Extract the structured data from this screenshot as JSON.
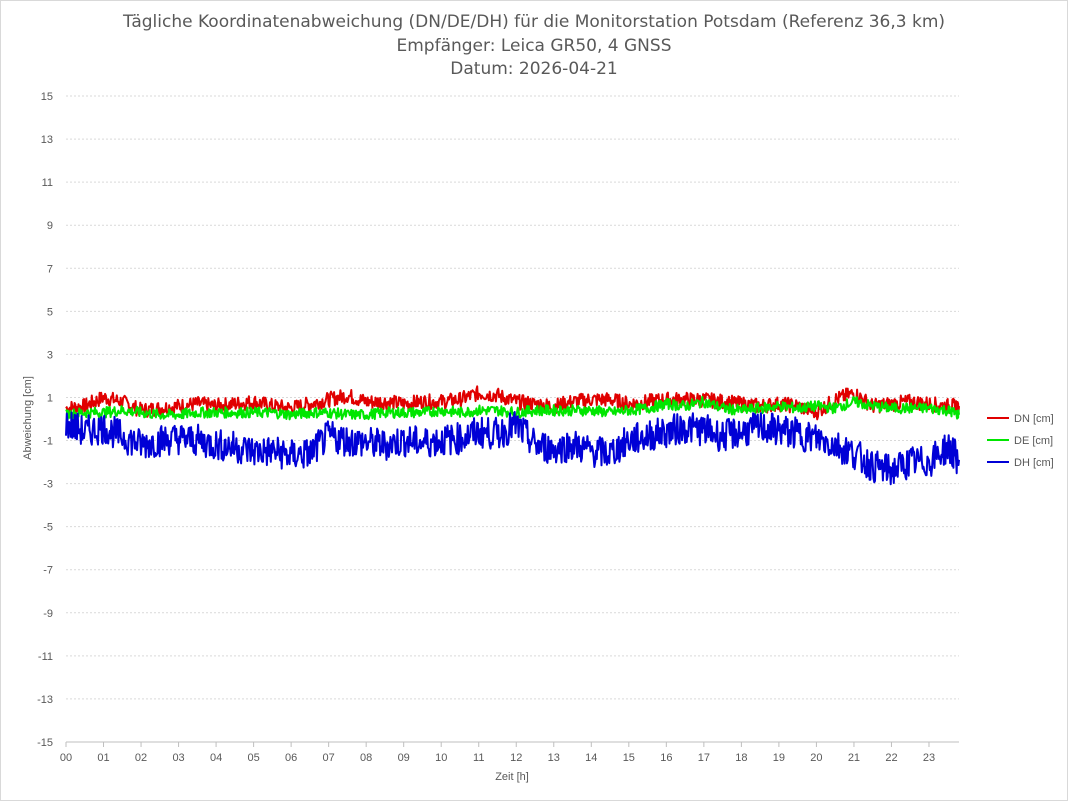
{
  "chart_data": {
    "type": "line",
    "title": "Tägliche Koordinatenabweichung (DN/DE/DH) für die Monitorstation Potsdam (Referenz 36,3 km)",
    "subtitle": [
      "Empfänger: Leica GR50, 4 GNSS",
      "Datum: 2026-04-21"
    ],
    "xlabel": "Zeit [h]",
    "ylabel": "Abweichung [cm]",
    "xlim": [
      0,
      23.8
    ],
    "ylim": [
      -15,
      15
    ],
    "x_ticks": [
      "00",
      "01",
      "02",
      "03",
      "04",
      "05",
      "06",
      "07",
      "08",
      "09",
      "10",
      "11",
      "12",
      "13",
      "14",
      "15",
      "16",
      "17",
      "18",
      "19",
      "20",
      "21",
      "22",
      "23"
    ],
    "y_ticks": [
      15,
      13,
      11,
      9,
      7,
      5,
      3,
      1,
      -1,
      -3,
      -5,
      -7,
      -9,
      -11,
      -13,
      -15
    ],
    "grid": "horizontal-dotted",
    "legend": "right",
    "x": [
      0,
      0.5,
      1,
      1.5,
      2,
      2.5,
      3,
      3.5,
      4,
      4.5,
      5,
      5.5,
      6,
      6.5,
      7,
      7.5,
      8,
      8.5,
      9,
      9.5,
      10,
      10.5,
      11,
      11.5,
      12,
      12.5,
      13,
      13.5,
      14,
      14.5,
      15,
      15.5,
      16,
      16.5,
      17,
      17.5,
      18,
      18.5,
      19,
      19.5,
      20,
      20.5,
      21,
      21.5,
      22,
      22.5,
      23,
      23.5,
      23.8
    ],
    "series": [
      {
        "name": "DN [cm]",
        "color": "#e00000",
        "values": [
          0.5,
          0.6,
          1.0,
          0.8,
          0.4,
          0.5,
          0.6,
          0.7,
          0.6,
          0.7,
          0.8,
          0.6,
          0.5,
          0.7,
          0.9,
          1.1,
          0.8,
          0.8,
          0.7,
          0.8,
          0.8,
          0.9,
          1.2,
          1.1,
          0.8,
          0.7,
          0.6,
          0.8,
          0.9,
          0.9,
          0.7,
          0.8,
          0.9,
          0.9,
          0.9,
          0.8,
          0.7,
          0.6,
          0.7,
          0.6,
          0.3,
          0.9,
          1.2,
          0.6,
          0.7,
          0.8,
          0.7,
          0.6,
          0.6
        ]
      },
      {
        "name": "DE [cm]",
        "color": "#00e600",
        "values": [
          0.2,
          0.3,
          0.3,
          0.4,
          0.3,
          0.2,
          0.2,
          0.3,
          0.3,
          0.3,
          0.3,
          0.3,
          0.2,
          0.3,
          0.3,
          0.2,
          0.2,
          0.3,
          0.3,
          0.3,
          0.4,
          0.3,
          0.4,
          0.4,
          0.3,
          0.4,
          0.4,
          0.4,
          0.4,
          0.3,
          0.4,
          0.5,
          0.7,
          0.6,
          0.8,
          0.5,
          0.4,
          0.5,
          0.6,
          0.5,
          0.6,
          0.5,
          0.8,
          0.6,
          0.5,
          0.5,
          0.5,
          0.4,
          0.2
        ]
      },
      {
        "name": "DH [cm]",
        "color": "#0000d6",
        "values": [
          -0.2,
          -0.6,
          -0.4,
          -0.8,
          -1.2,
          -1.0,
          -0.9,
          -1.0,
          -1.2,
          -1.3,
          -1.5,
          -1.5,
          -1.7,
          -1.6,
          -0.8,
          -1.0,
          -1.1,
          -1.2,
          -1.0,
          -1.1,
          -1.0,
          -0.9,
          -0.6,
          -0.7,
          -0.3,
          -1.2,
          -1.4,
          -1.2,
          -1.5,
          -1.6,
          -1.0,
          -0.8,
          -0.6,
          -0.4,
          -0.5,
          -0.8,
          -0.6,
          -0.4,
          -0.5,
          -0.7,
          -0.9,
          -1.2,
          -1.6,
          -2.2,
          -2.4,
          -2.0,
          -2.0,
          -1.3,
          -1.9
        ]
      }
    ]
  }
}
